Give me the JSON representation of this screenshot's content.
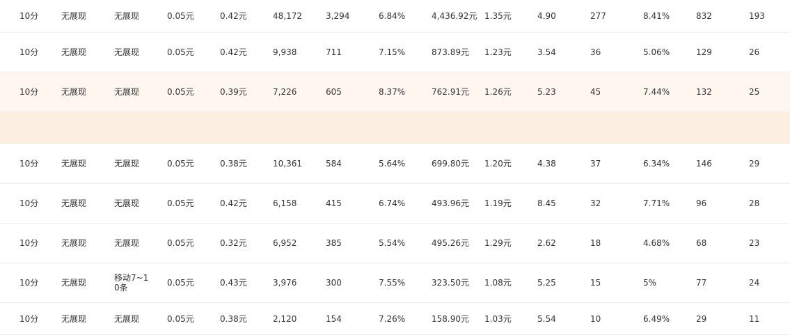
{
  "table": {
    "rows": [
      {
        "kind": "data",
        "cells": [
          "10分",
          "无展现",
          "无展现",
          "0.05元",
          "0.42元",
          "48,172",
          "3,294",
          "6.84%",
          "4,436.92元",
          "1.35元",
          "4.90",
          "277",
          "8.41%",
          "832",
          "193"
        ]
      },
      {
        "kind": "data",
        "cells": [
          "10分",
          "无展现",
          "无展现",
          "0.05元",
          "0.42元",
          "9,938",
          "711",
          "7.15%",
          "873.89元",
          "1.23元",
          "3.54",
          "36",
          "5.06%",
          "129",
          "26"
        ]
      },
      {
        "kind": "data",
        "highlight": true,
        "cells": [
          "10分",
          "无展现",
          "无展现",
          "0.05元",
          "0.39元",
          "7,226",
          "605",
          "8.37%",
          "762.91元",
          "1.26元",
          "5.23",
          "45",
          "7.44%",
          "132",
          "25"
        ]
      },
      {
        "kind": "expand"
      },
      {
        "kind": "data",
        "cells": [
          "10分",
          "无展现",
          "无展现",
          "0.05元",
          "0.38元",
          "10,361",
          "584",
          "5.64%",
          "699.80元",
          "1.20元",
          "4.38",
          "37",
          "6.34%",
          "146",
          "29"
        ]
      },
      {
        "kind": "data",
        "cells": [
          "10分",
          "无展现",
          "无展现",
          "0.05元",
          "0.42元",
          "6,158",
          "415",
          "6.74%",
          "493.96元",
          "1.19元",
          "8.45",
          "32",
          "7.71%",
          "96",
          "28"
        ]
      },
      {
        "kind": "data",
        "cells": [
          "10分",
          "无展现",
          "无展现",
          "0.05元",
          "0.32元",
          "6,952",
          "385",
          "5.54%",
          "495.26元",
          "1.29元",
          "2.62",
          "18",
          "4.68%",
          "68",
          "23"
        ]
      },
      {
        "kind": "data",
        "cells": [
          "10分",
          "无展现",
          "移动7~10条",
          "0.05元",
          "0.43元",
          "3,976",
          "300",
          "7.55%",
          "323.50元",
          "1.08元",
          "5.25",
          "15",
          "5%",
          "77",
          "24"
        ]
      },
      {
        "kind": "data",
        "cells": [
          "10分",
          "无展现",
          "无展现",
          "0.05元",
          "0.38元",
          "2,120",
          "154",
          "7.26%",
          "158.90元",
          "1.03元",
          "5.54",
          "10",
          "6.49%",
          "29",
          "11"
        ]
      }
    ]
  }
}
